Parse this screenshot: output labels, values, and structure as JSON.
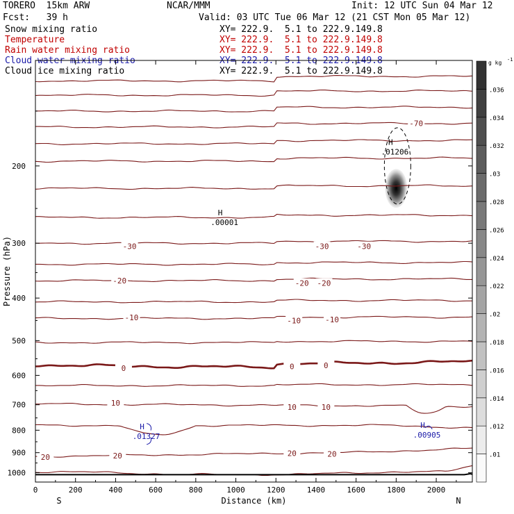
{
  "header": {
    "model": "TORERO  15km ARW",
    "center": "NCAR/MMM",
    "init": "Init: 12 UTC Sun 04 Mar 12",
    "fcst": "Fcst:   39 h",
    "valid": "Valid: 03 UTC Tue 06 Mar 12 (21 CST Mon 05 Mar 12)"
  },
  "fields": [
    {
      "name": "Snow mixing ratio",
      "xy": "XY= 222.9.  5.1 to 222.9.149.8",
      "color": "#000000"
    },
    {
      "name": "Temperature",
      "xy": "XY= 222.9.  5.1 to 222.9.149.8",
      "color": "#c00000"
    },
    {
      "name": "Rain water mixing ratio",
      "xy": "XY= 222.9.  5.1 to 222.9.149.8",
      "color": "#c00000"
    },
    {
      "name": "Cloud water mixing ratio",
      "xy": "XY= 222.9.  5.1 to 222.9.149.8",
      "color": "#1a1aa8"
    },
    {
      "name": "Cloud ice mixing ratio",
      "xy": "XY= 222.9.  5.1 to 222.9.149.8",
      "color": "#000000"
    }
  ],
  "chart_data": {
    "type": "line",
    "xlabel": "Distance (km)",
    "ylabel": "Pressure (hPa)",
    "xlim": [
      0,
      2180
    ],
    "ylim": [
      1050,
      115
    ],
    "x_ticks": [
      0,
      200,
      400,
      600,
      800,
      1000,
      1200,
      1400,
      1600,
      1800,
      2000
    ],
    "y_ticks": [
      200,
      300,
      400,
      500,
      600,
      700,
      800,
      900,
      1000
    ],
    "direction_labels": {
      "left": "S",
      "right": "N"
    },
    "temperature_contours": [
      {
        "t": -70,
        "labels": [
          {
            "x": 1900,
            "p": 160
          }
        ]
      },
      {
        "t": -30,
        "labels": [
          {
            "x": 470,
            "p": 305
          },
          {
            "x": 1430,
            "p": 305
          },
          {
            "x": 1640,
            "p": 305
          }
        ]
      },
      {
        "t": -20,
        "labels": [
          {
            "x": 420,
            "p": 365
          },
          {
            "x": 1330,
            "p": 370
          },
          {
            "x": 1440,
            "p": 370
          }
        ]
      },
      {
        "t": -10,
        "labels": [
          {
            "x": 480,
            "p": 443
          },
          {
            "x": 1290,
            "p": 450
          },
          {
            "x": 1480,
            "p": 448
          }
        ]
      },
      {
        "t": 0,
        "labels": [
          {
            "x": 440,
            "p": 578
          },
          {
            "x": 1280,
            "p": 572
          },
          {
            "x": 1450,
            "p": 569
          }
        ]
      },
      {
        "t": 10,
        "labels": [
          {
            "x": 400,
            "p": 693
          },
          {
            "x": 1280,
            "p": 708
          },
          {
            "x": 1450,
            "p": 708
          }
        ]
      },
      {
        "t": 20,
        "labels": [
          {
            "x": 50,
            "p": 921
          },
          {
            "x": 410,
            "p": 914
          },
          {
            "x": 1280,
            "p": 903
          },
          {
            "x": 1480,
            "p": 906
          }
        ]
      }
    ],
    "maxima": [
      {
        "label": "H",
        "value": ".01206",
        "x": 1800,
        "p": 183,
        "field": "Cloud ice mixing ratio"
      },
      {
        "label": "H",
        "value": ".00001",
        "x": 950,
        "p": 265,
        "field": "Cloud ice mixing ratio"
      },
      {
        "label": "H",
        "value": ".01327",
        "x": 560,
        "p": 813,
        "field": "Cloud water mixing ratio"
      },
      {
        "label": "H",
        "value": ".00905",
        "x": 1960,
        "p": 807,
        "field": "Cloud water mixing ratio"
      }
    ],
    "colorbar": {
      "unit": "g kg",
      "unit_exponent": "-1",
      "levels": [
        ".01",
        ".012",
        ".014",
        ".016",
        ".018",
        ".02",
        ".022",
        ".024",
        ".026",
        ".028",
        ".03",
        ".032",
        ".034",
        ".036"
      ]
    },
    "colors": {
      "temperature": "#7a1818",
      "cloud_water": "#1a1aa8",
      "snow": "#000000"
    }
  }
}
